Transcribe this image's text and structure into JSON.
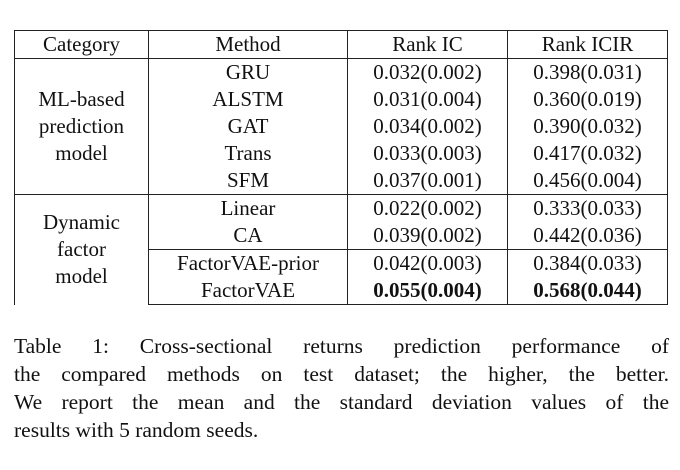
{
  "table": {
    "headers": [
      "Category",
      "Method",
      "Rank IC",
      "Rank ICIR"
    ],
    "groups": [
      {
        "category_lines": [
          "ML-based",
          "prediction",
          "model"
        ],
        "rows": [
          {
            "method": "GRU",
            "rank_ic": "0.032(0.002)",
            "rank_icir": "0.398(0.031)"
          },
          {
            "method": "ALSTM",
            "rank_ic": "0.031(0.004)",
            "rank_icir": "0.360(0.019)"
          },
          {
            "method": "GAT",
            "rank_ic": "0.034(0.002)",
            "rank_icir": "0.390(0.032)"
          },
          {
            "method": "Trans",
            "rank_ic": "0.033(0.003)",
            "rank_icir": "0.417(0.032)"
          },
          {
            "method": "SFM",
            "rank_ic": "0.037(0.001)",
            "rank_icir": "0.456(0.004)"
          }
        ]
      },
      {
        "category_lines": [
          "Dynamic",
          "factor",
          "model"
        ],
        "rows": [
          {
            "method": "Linear",
            "rank_ic": "0.022(0.002)",
            "rank_icir": "0.333(0.033)"
          },
          {
            "method": "CA",
            "rank_ic": "0.039(0.002)",
            "rank_icir": "0.442(0.036)"
          },
          {
            "method": "FactorVAE-prior",
            "rank_ic": "0.042(0.003)",
            "rank_icir": "0.384(0.033)"
          },
          {
            "method": "FactorVAE",
            "rank_ic": "0.055(0.004)",
            "rank_icir": "0.568(0.044)",
            "bold": true
          }
        ]
      }
    ]
  },
  "caption": {
    "lines": [
      "Table 1: Cross-sectional returns prediction performance of",
      "the compared methods on test dataset; the higher, the better.",
      "We report the mean and the standard deviation values of the",
      "results with 5 random seeds."
    ]
  }
}
